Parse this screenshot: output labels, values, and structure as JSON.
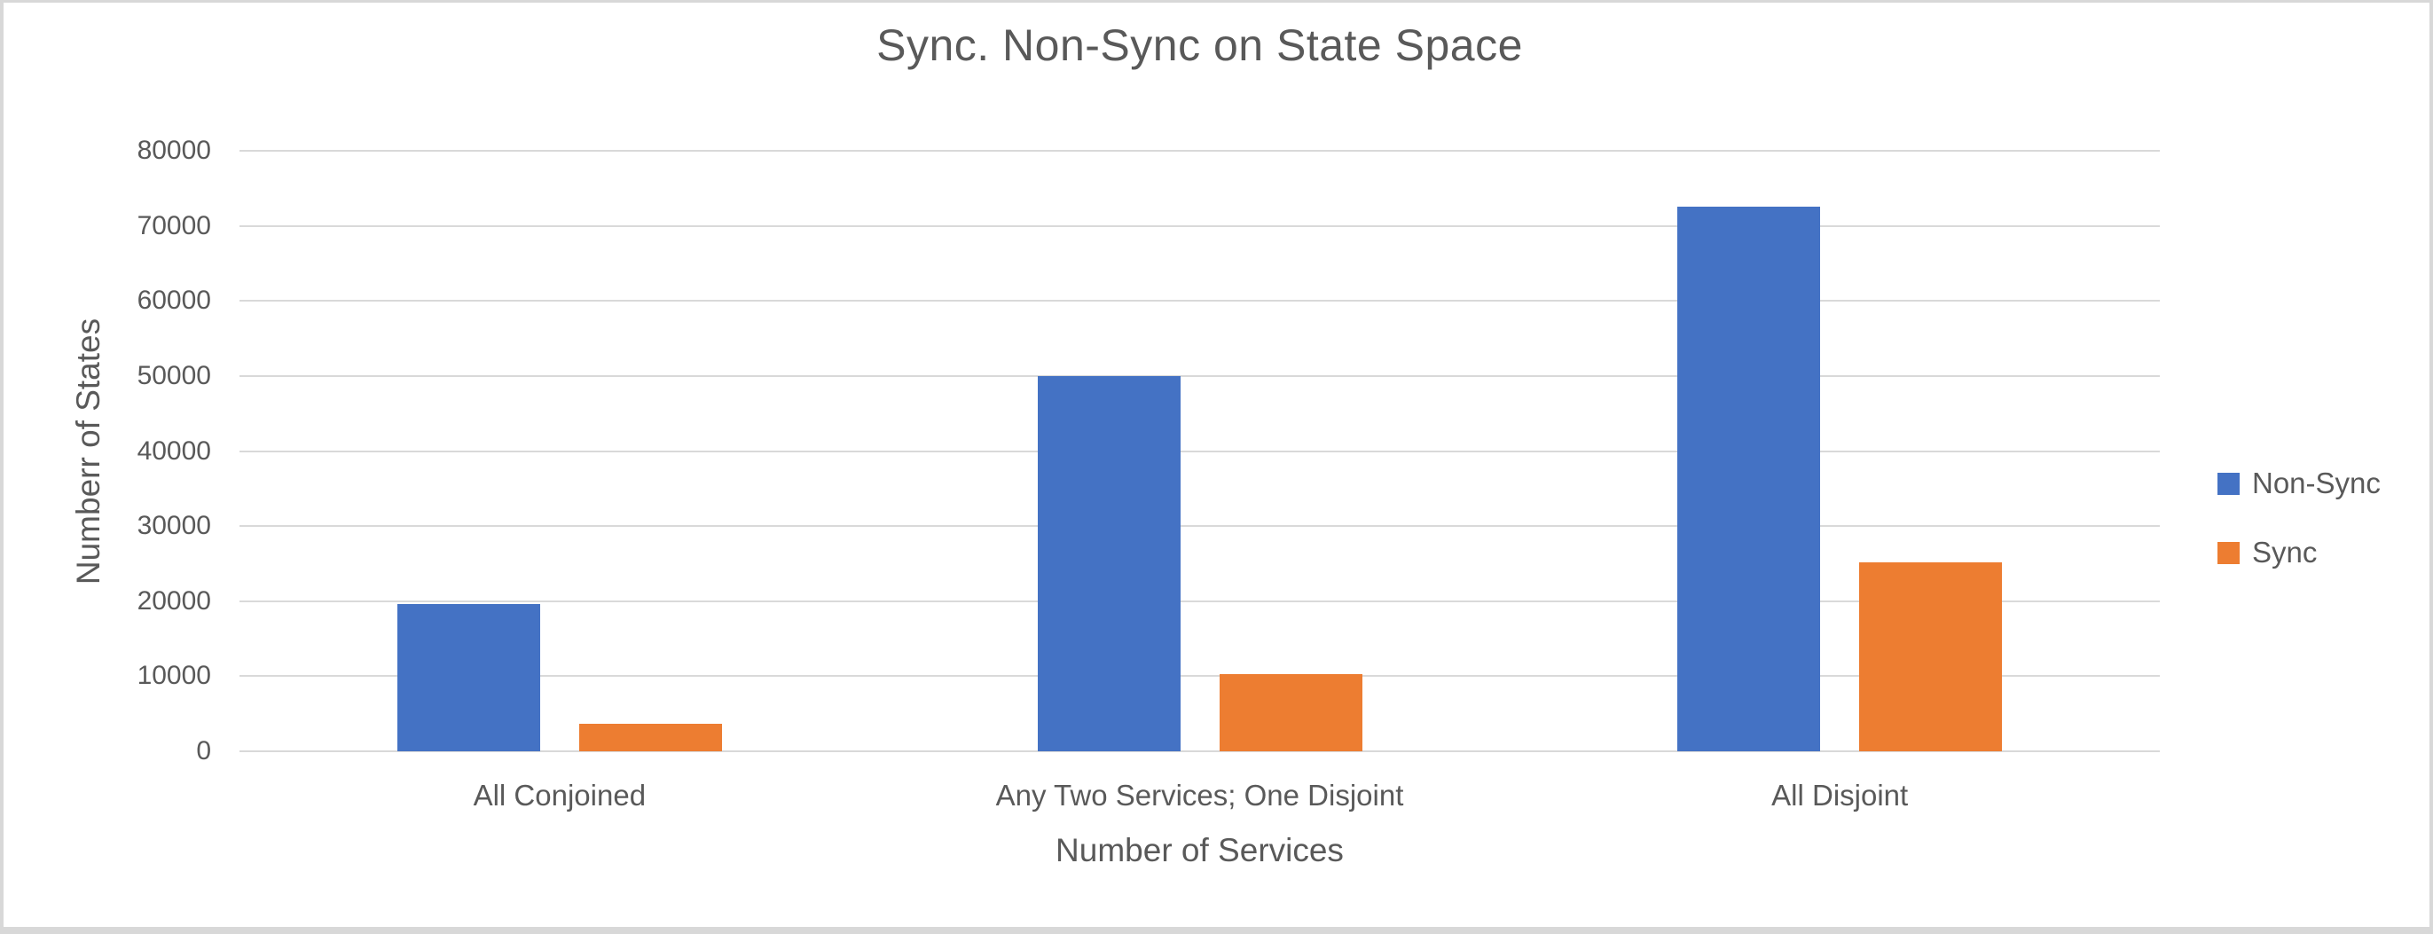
{
  "frame": {
    "background": "#ffffff",
    "border_color": "#d8d8d8"
  },
  "chart_data": {
    "type": "bar",
    "title": "Sync. Non-Sync on State Space",
    "xlabel": "Number of Services",
    "ylabel": "Numberr of States",
    "categories": [
      "All Conjoined",
      "Any Two Services; One Disjoint",
      "All Disjoint"
    ],
    "series": [
      {
        "name": "Non-Sync",
        "color": "#4472C4",
        "values": [
          19600,
          50000,
          72500
        ]
      },
      {
        "name": "Sync",
        "color": "#ED7D31",
        "values": [
          3700,
          10300,
          25200
        ]
      }
    ],
    "ylim": [
      0,
      80000
    ],
    "yticks": [
      0,
      10000,
      20000,
      30000,
      40000,
      50000,
      60000,
      70000,
      80000
    ],
    "grid": true,
    "gridline_color": "#d9d9d9",
    "axis_line_color": "#d9d9d9",
    "text_color": "#595959",
    "legend_position": "right"
  }
}
